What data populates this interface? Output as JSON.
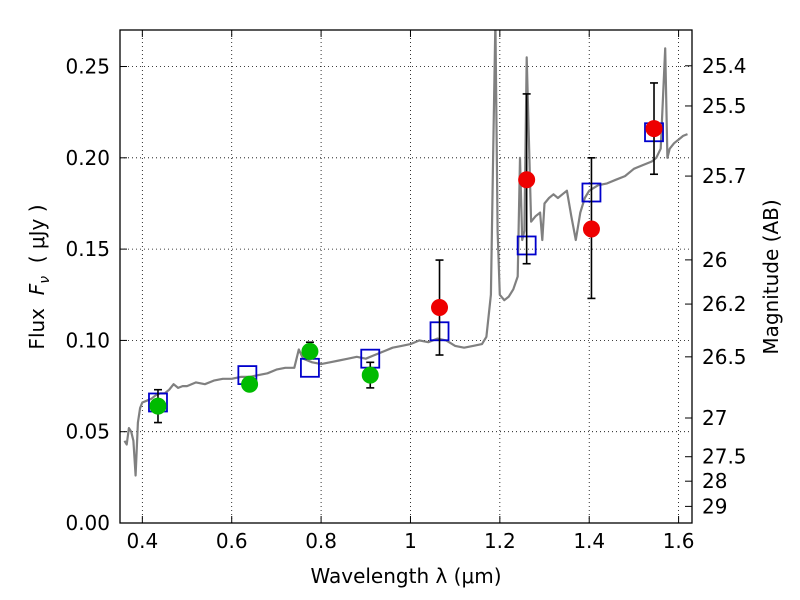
{
  "chart_data": {
    "type": "scatter",
    "xlabel": "Wavelength  λ (μm)",
    "ylabel": "Flux  F_ν  ( μJy )",
    "ylabel_parts": {
      "a": "Flux  ",
      "b": "F",
      "c": "ν",
      "d": "  ( μJy )"
    },
    "y2label": "Magnitude (AB)",
    "xlim": [
      0.35,
      1.63
    ],
    "ylim": [
      0.0,
      0.27
    ],
    "grid": true,
    "x_ticks": [
      0.4,
      0.6,
      0.8,
      1.0,
      1.2,
      1.4,
      1.6
    ],
    "x_tick_labels": [
      "0.4",
      "0.6",
      "0.8",
      "1",
      "1.2",
      "1.4",
      "1.6"
    ],
    "y_ticks": [
      0.0,
      0.05,
      0.1,
      0.15,
      0.2,
      0.25
    ],
    "y_tick_labels": [
      "0.00",
      "0.05",
      "0.10",
      "0.15",
      "0.20",
      "0.25"
    ],
    "mag_ticks": [
      {
        "label": "25.4",
        "flux": 0.2504
      },
      {
        "label": "25.5",
        "flux": 0.2284
      },
      {
        "label": "25.7",
        "flux": 0.19
      },
      {
        "label": "26",
        "flux": 0.1441
      },
      {
        "label": "26.2",
        "flux": 0.1199
      },
      {
        "label": "26.5",
        "flux": 0.091
      },
      {
        "label": "27",
        "flux": 0.0575
      },
      {
        "label": "27.5",
        "flux": 0.0363
      },
      {
        "label": "28",
        "flux": 0.0229
      },
      {
        "label": "29",
        "flux": 0.0091
      }
    ],
    "series": [
      {
        "kind": "model-spectrum",
        "color": "#808080",
        "x": [
          0.36,
          0.365,
          0.37,
          0.375,
          0.38,
          0.385,
          0.39,
          0.395,
          0.4,
          0.41,
          0.42,
          0.43,
          0.44,
          0.45,
          0.46,
          0.47,
          0.48,
          0.49,
          0.5,
          0.52,
          0.54,
          0.56,
          0.58,
          0.6,
          0.62,
          0.64,
          0.66,
          0.68,
          0.7,
          0.72,
          0.74,
          0.75,
          0.76,
          0.78,
          0.8,
          0.82,
          0.84,
          0.86,
          0.88,
          0.9,
          0.92,
          0.94,
          0.96,
          0.98,
          1.0,
          1.02,
          1.04,
          1.06,
          1.08,
          1.1,
          1.12,
          1.14,
          1.16,
          1.17,
          1.18,
          1.185,
          1.19,
          1.195,
          1.2,
          1.21,
          1.22,
          1.23,
          1.24,
          1.245,
          1.25,
          1.255,
          1.26,
          1.27,
          1.28,
          1.29,
          1.295,
          1.3,
          1.31,
          1.32,
          1.33,
          1.34,
          1.35,
          1.36,
          1.37,
          1.38,
          1.39,
          1.4,
          1.42,
          1.44,
          1.46,
          1.48,
          1.5,
          1.52,
          1.54,
          1.55,
          1.56,
          1.57,
          1.575,
          1.58,
          1.59,
          1.6,
          1.61,
          1.62
        ],
        "y": [
          0.045,
          0.043,
          0.052,
          0.05,
          0.045,
          0.026,
          0.055,
          0.063,
          0.066,
          0.067,
          0.068,
          0.07,
          0.071,
          0.071,
          0.073,
          0.076,
          0.074,
          0.075,
          0.075,
          0.077,
          0.076,
          0.078,
          0.079,
          0.079,
          0.08,
          0.08,
          0.081,
          0.082,
          0.084,
          0.085,
          0.085,
          0.095,
          0.09,
          0.088,
          0.087,
          0.088,
          0.089,
          0.09,
          0.091,
          0.09,
          0.092,
          0.094,
          0.096,
          0.097,
          0.098,
          0.1,
          0.099,
          0.101,
          0.1,
          0.097,
          0.096,
          0.097,
          0.098,
          0.102,
          0.125,
          0.2,
          0.275,
          0.16,
          0.125,
          0.122,
          0.124,
          0.128,
          0.135,
          0.2,
          0.155,
          0.16,
          0.255,
          0.165,
          0.168,
          0.17,
          0.155,
          0.175,
          0.178,
          0.18,
          0.178,
          0.18,
          0.182,
          0.168,
          0.155,
          0.17,
          0.178,
          0.182,
          0.185,
          0.186,
          0.188,
          0.19,
          0.194,
          0.196,
          0.198,
          0.2,
          0.205,
          0.26,
          0.2,
          0.205,
          0.208,
          0.21,
          0.212,
          0.213
        ]
      },
      {
        "kind": "model-photometry",
        "marker": "open-square",
        "color": "#0000cc",
        "points": [
          [
            0.435,
            0.066
          ],
          [
            0.635,
            0.081
          ],
          [
            0.775,
            0.085
          ],
          [
            0.91,
            0.09
          ],
          [
            1.065,
            0.105
          ],
          [
            1.26,
            0.152
          ],
          [
            1.405,
            0.181
          ],
          [
            1.545,
            0.214
          ]
        ]
      },
      {
        "kind": "observed-photometry",
        "marker": "filled-circle",
        "points": [
          {
            "x": 0.435,
            "y": 0.064,
            "lo": 0.055,
            "hi": 0.073,
            "color": "#00bb00"
          },
          {
            "x": 0.64,
            "y": 0.076,
            "lo": 0.073,
            "hi": 0.079,
            "color": "#00bb00"
          },
          {
            "x": 0.775,
            "y": 0.094,
            "lo": 0.09,
            "hi": 0.099,
            "color": "#00bb00"
          },
          {
            "x": 0.91,
            "y": 0.081,
            "lo": 0.074,
            "hi": 0.088,
            "color": "#00bb00"
          },
          {
            "x": 1.065,
            "y": 0.118,
            "lo": 0.092,
            "hi": 0.144,
            "color": "#ee0000"
          },
          {
            "x": 1.26,
            "y": 0.188,
            "lo": 0.142,
            "hi": 0.235,
            "color": "#ee0000"
          },
          {
            "x": 1.405,
            "y": 0.161,
            "lo": 0.123,
            "hi": 0.2,
            "color": "#ee0000"
          },
          {
            "x": 1.545,
            "y": 0.216,
            "lo": 0.191,
            "hi": 0.241,
            "color": "#ee0000"
          }
        ]
      }
    ]
  }
}
